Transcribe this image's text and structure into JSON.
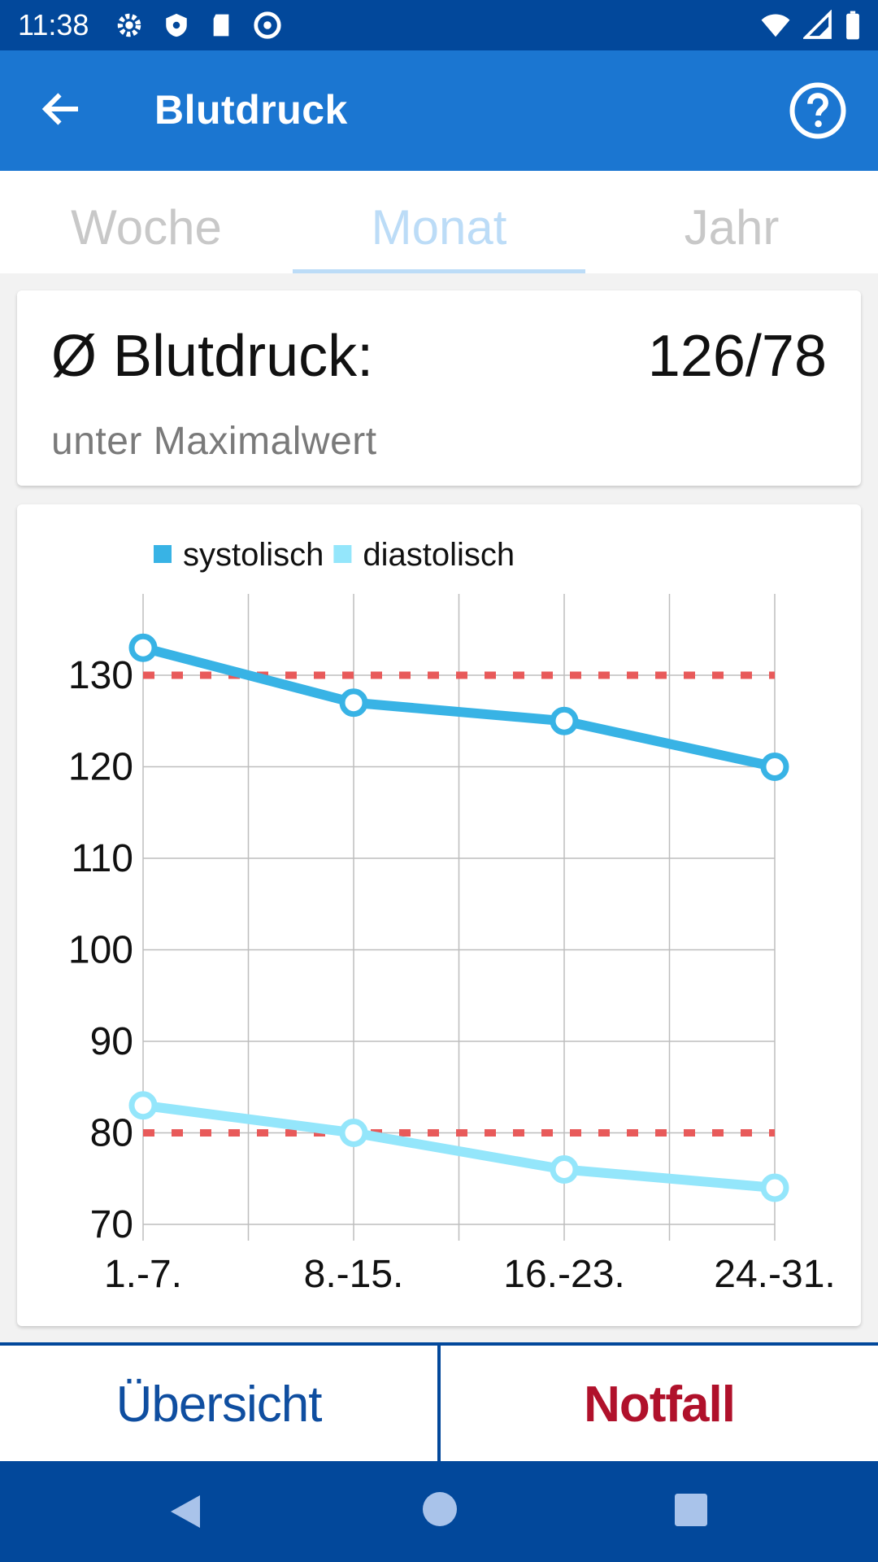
{
  "status_bar": {
    "time": "11:38"
  },
  "app_bar": {
    "title": "Blutdruck"
  },
  "tabs": [
    {
      "label": "Woche",
      "active": false
    },
    {
      "label": "Monat",
      "active": true
    },
    {
      "label": "Jahr",
      "active": false
    }
  ],
  "summary": {
    "label": "Ø Blutdruck:",
    "value": "126/78",
    "subtitle": "unter Maximalwert"
  },
  "chart_data": {
    "type": "line",
    "categories": [
      "1.-7.",
      "8.-15.",
      "16.-23.",
      "24.-31."
    ],
    "series": [
      {
        "name": "systolisch",
        "color": "#38b3e5",
        "values": [
          133,
          127,
          125,
          120
        ]
      },
      {
        "name": "diastolisch",
        "color": "#94e6fb",
        "values": [
          83,
          80,
          76,
          74
        ]
      }
    ],
    "threshold_lines": [
      130,
      80
    ],
    "threshold_color": "#e85a5a",
    "y_ticks": [
      70,
      80,
      90,
      100,
      110,
      120,
      130
    ],
    "ylim": [
      70,
      137
    ],
    "legend_position": "top",
    "grid": true
  },
  "bottom": {
    "overview_label": "Übersicht",
    "emergency_label": "Notfall"
  }
}
